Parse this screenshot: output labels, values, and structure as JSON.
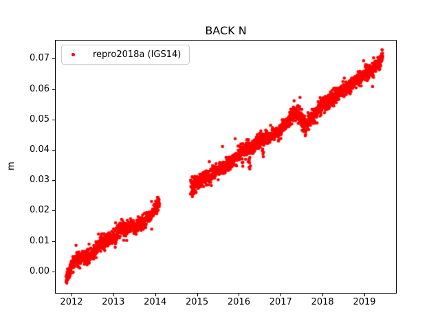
{
  "figure": {
    "title": "BACK N",
    "background": "#ffffff"
  },
  "legend": {
    "label": "repro2018a (IGS14)",
    "marker_color": "#ff0000"
  },
  "axes": {
    "ylabel": "m",
    "xlabel": "",
    "xlim": [
      2011.606,
      2019.772
    ],
    "ylim": [
      -0.0073,
      0.0762
    ],
    "xtick_values": [
      2012,
      2013,
      2014,
      2015,
      2016,
      2017,
      2018,
      2019
    ],
    "xtick_labels": [
      "2012",
      "2013",
      "2014",
      "2015",
      "2016",
      "2017",
      "2018",
      "2019"
    ],
    "ytick_values": [
      0.0,
      0.01,
      0.02,
      0.03,
      0.04,
      0.05,
      0.06,
      0.07
    ],
    "ytick_labels": [
      "0.00",
      "0.01",
      "0.02",
      "0.03",
      "0.04",
      "0.05",
      "0.06",
      "0.07"
    ]
  },
  "chart_data": {
    "type": "scatter",
    "title": "BACK N",
    "xlabel": "",
    "ylabel": "m",
    "xlim": [
      2011.606,
      2019.772
    ],
    "ylim": [
      -0.0073,
      0.0762
    ],
    "grid": false,
    "legend_position": "upper left",
    "series": [
      {
        "name": "repro2018a (IGS14)",
        "color": "#ff0000",
        "marker": "dot",
        "marker_radius_px": 2.3,
        "x_start": 2011.87,
        "x_end": 2019.44,
        "points_per_year": 360,
        "gaps": [
          [
            2014.105,
            2014.865
          ]
        ],
        "noise_std": 0.00115,
        "trend": [
          [
            2011.87,
            -0.0025
          ],
          [
            2011.92,
            -0.001
          ],
          [
            2012.0,
            0.002
          ],
          [
            2012.1,
            0.0045
          ],
          [
            2012.2,
            0.004
          ],
          [
            2012.3,
            0.005
          ],
          [
            2012.42,
            0.0045
          ],
          [
            2012.55,
            0.0065
          ],
          [
            2012.7,
            0.0095
          ],
          [
            2012.8,
            0.0095
          ],
          [
            2012.95,
            0.011
          ],
          [
            2013.05,
            0.0115
          ],
          [
            2013.2,
            0.0142
          ],
          [
            2013.33,
            0.0132
          ],
          [
            2013.45,
            0.0152
          ],
          [
            2013.55,
            0.0148
          ],
          [
            2013.7,
            0.016
          ],
          [
            2013.85,
            0.0178
          ],
          [
            2013.95,
            0.019
          ],
          [
            2014.02,
            0.0208
          ],
          [
            2014.08,
            0.0222
          ],
          [
            2014.1,
            0.0218
          ],
          [
            2014.87,
            0.0275
          ],
          [
            2014.95,
            0.029
          ],
          [
            2015.05,
            0.0295
          ],
          [
            2015.15,
            0.0305
          ],
          [
            2015.3,
            0.0312
          ],
          [
            2015.45,
            0.0325
          ],
          [
            2015.6,
            0.034
          ],
          [
            2015.75,
            0.0355
          ],
          [
            2015.9,
            0.0372
          ],
          [
            2016.0,
            0.0385
          ],
          [
            2016.1,
            0.0398
          ],
          [
            2016.2,
            0.0402
          ],
          [
            2016.3,
            0.0405
          ],
          [
            2016.42,
            0.0422
          ],
          [
            2016.55,
            0.0438
          ],
          [
            2016.68,
            0.0442
          ],
          [
            2016.8,
            0.0448
          ],
          [
            2016.95,
            0.046
          ],
          [
            2017.1,
            0.048
          ],
          [
            2017.25,
            0.0508
          ],
          [
            2017.38,
            0.0525
          ],
          [
            2017.5,
            0.0505
          ],
          [
            2017.58,
            0.0482
          ],
          [
            2017.7,
            0.0495
          ],
          [
            2017.85,
            0.052
          ],
          [
            2017.95,
            0.054
          ],
          [
            2018.1,
            0.0558
          ],
          [
            2018.25,
            0.0572
          ],
          [
            2018.4,
            0.0588
          ],
          [
            2018.55,
            0.0602
          ],
          [
            2018.7,
            0.0615
          ],
          [
            2018.85,
            0.0632
          ],
          [
            2019.0,
            0.065
          ],
          [
            2019.15,
            0.0662
          ],
          [
            2019.28,
            0.0675
          ],
          [
            2019.38,
            0.0695
          ],
          [
            2019.44,
            0.0705
          ]
        ],
        "outliers": [
          {
            "x": 2015.61,
            "spread_x": 0.0,
            "count": 1,
            "dy_min": 0.007,
            "dy_max": 0.007
          },
          {
            "x": 2014.9,
            "spread_x": 0.06,
            "count": 14,
            "dy_min": -0.003,
            "dy_max": 0.003
          },
          {
            "x": 2012.0,
            "spread_x": 0.06,
            "count": 8,
            "dy_min": -0.0022,
            "dy_max": 0.0022
          },
          {
            "x": 2016.1,
            "spread_x": 0.02,
            "count": 3,
            "dy_min": -0.0055,
            "dy_max": -0.003
          },
          {
            "x": 2016.25,
            "spread_x": 0.03,
            "count": 7,
            "dy_min": -0.007,
            "dy_max": -0.002
          },
          {
            "x": 2016.58,
            "spread_x": 0.03,
            "count": 6,
            "dy_min": -0.0065,
            "dy_max": -0.002
          },
          {
            "x": 2017.55,
            "spread_x": 0.05,
            "count": 10,
            "dy_min": -0.004,
            "dy_max": -0.001
          }
        ]
      }
    ]
  }
}
